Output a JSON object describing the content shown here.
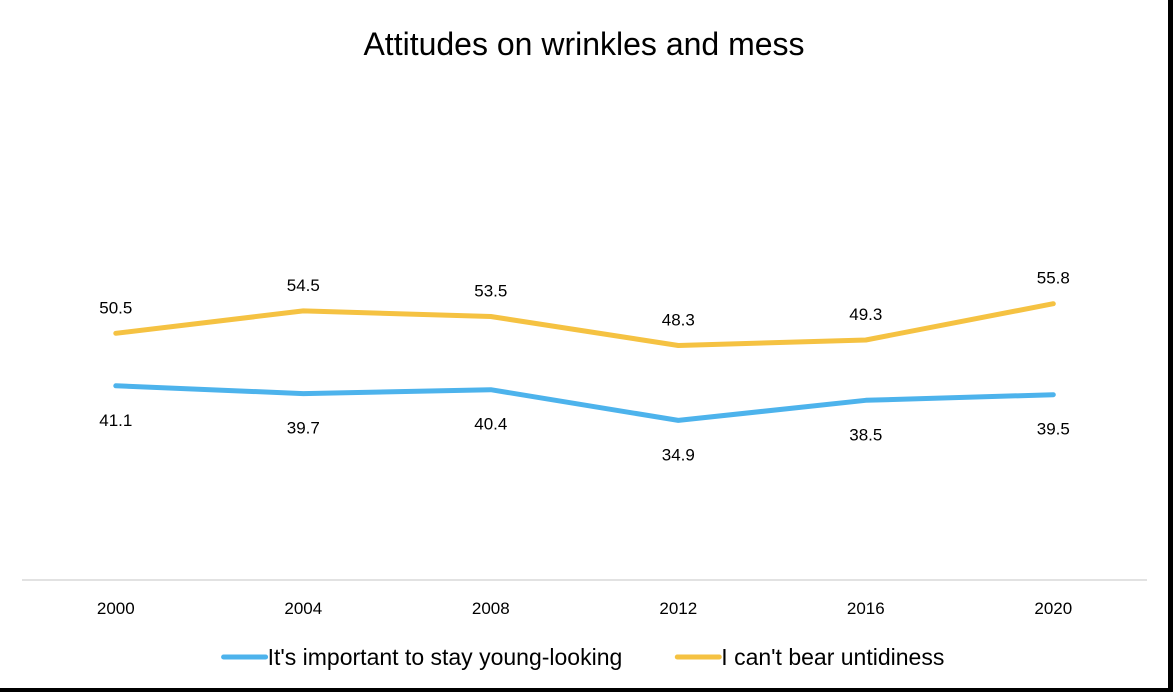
{
  "chart_data": {
    "type": "line",
    "title": "Attitudes on wrinkles and mess",
    "xlabel": "",
    "ylabel": "",
    "categories": [
      "2000",
      "2004",
      "2008",
      "2012",
      "2016",
      "2020"
    ],
    "ylim": [
      0,
      80
    ],
    "grid": false,
    "legend": "bottom",
    "series": [
      {
        "name": "It's important to stay young-looking",
        "color": "#4db3ec",
        "values": [
          41.1,
          39.7,
          40.4,
          34.9,
          38.5,
          39.5
        ],
        "label_position": "below"
      },
      {
        "name": "I can't bear untidiness",
        "color": "#f5c242",
        "values": [
          50.5,
          54.5,
          53.5,
          48.3,
          49.3,
          55.8
        ],
        "label_position": "above"
      }
    ]
  }
}
